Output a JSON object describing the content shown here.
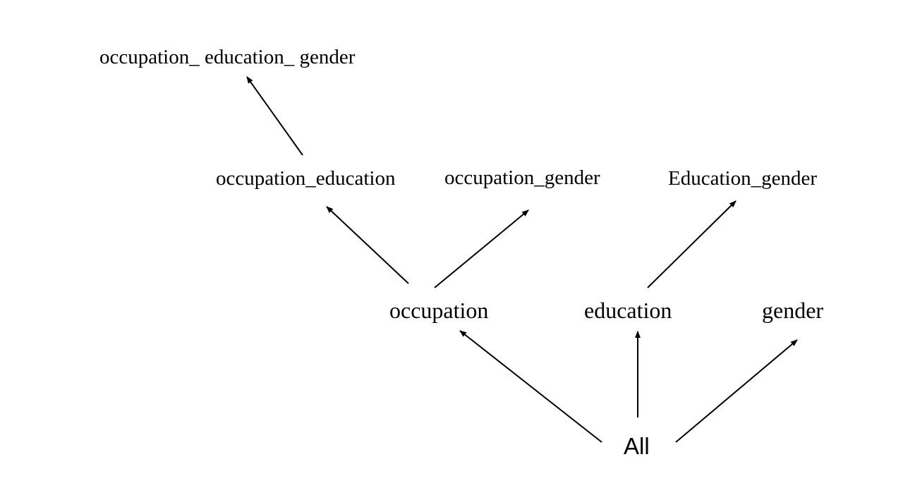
{
  "nodes": {
    "occupation_education_gender": "occupation_ education_ gender",
    "occupation_education": "occupation_education",
    "occupation_gender": "occupation_gender",
    "education_gender": "Education_gender",
    "occupation": "occupation",
    "education": "education",
    "gender": "gender",
    "all": "All"
  },
  "edges": [
    {
      "from": "occupation_education",
      "to": "occupation_education_gender"
    },
    {
      "from": "occupation",
      "to": "occupation_education"
    },
    {
      "from": "occupation",
      "to": "occupation_gender"
    },
    {
      "from": "education",
      "to": "education_gender"
    },
    {
      "from": "all",
      "to": "occupation"
    },
    {
      "from": "all",
      "to": "education"
    },
    {
      "from": "all",
      "to": "gender"
    }
  ],
  "colors": {
    "line": "#000000",
    "text": "#000000",
    "background": "#ffffff"
  }
}
